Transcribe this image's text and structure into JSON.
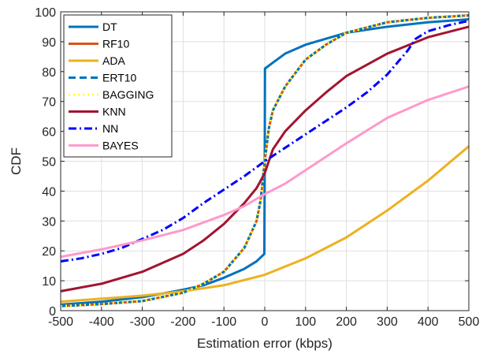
{
  "chart_data": {
    "type": "line",
    "title": "",
    "xlabel": "Estimation error (kbps)",
    "ylabel": "CDF",
    "xlim": [
      -500,
      500
    ],
    "ylim": [
      0,
      100
    ],
    "xticks": [
      "-500",
      "-400",
      "-300",
      "-200",
      "-100",
      "0",
      "100",
      "200",
      "300",
      "400",
      "500"
    ],
    "yticks": [
      "0",
      "10",
      "20",
      "30",
      "40",
      "50",
      "60",
      "70",
      "80",
      "90",
      "100"
    ],
    "grid": true,
    "legend_position": "top-left",
    "series": [
      {
        "name": "DT",
        "color": "#0072BD",
        "dash": "solid",
        "x": [
          -500,
          -400,
          -300,
          -200,
          -150,
          -100,
          -50,
          -20,
          -1,
          0,
          0.5,
          20,
          50,
          100,
          200,
          300,
          400,
          500
        ],
        "y": [
          2,
          3,
          4.5,
          7,
          8.5,
          11,
          14,
          16.5,
          19,
          50,
          81,
          83,
          86,
          89,
          93,
          95,
          96.5,
          97.5
        ]
      },
      {
        "name": "RF10",
        "color": "#D95319",
        "dash": "solid",
        "x": [
          -500,
          -400,
          -300,
          -200,
          -150,
          -100,
          -50,
          -20,
          -10,
          0,
          10,
          20,
          50,
          100,
          150,
          200,
          300,
          400,
          500
        ],
        "y": [
          1.5,
          2.2,
          3.2,
          6,
          9,
          13,
          21,
          30,
          37,
          50,
          61,
          67,
          75,
          84,
          89,
          93,
          96.5,
          98,
          98.8
        ]
      },
      {
        "name": "ADA",
        "color": "#EDB120",
        "dash": "solid",
        "x": [
          -500,
          -400,
          -300,
          -200,
          -100,
          0,
          100,
          200,
          300,
          400,
          500
        ],
        "y": [
          3,
          4,
          5,
          6.5,
          8.5,
          12,
          17.5,
          24.5,
          33.5,
          43.5,
          55
        ]
      },
      {
        "name": "ERT10",
        "color": "#0072BD",
        "dash": "dashed",
        "x": [
          -500,
          -400,
          -300,
          -200,
          -150,
          -100,
          -50,
          -20,
          -10,
          0,
          10,
          20,
          50,
          100,
          150,
          200,
          300,
          400,
          500
        ],
        "y": [
          1.5,
          2.2,
          3.2,
          6,
          9,
          13,
          21,
          30,
          37,
          50,
          61,
          67,
          75,
          84,
          89,
          93,
          96.5,
          98,
          98.8
        ]
      },
      {
        "name": "BAGGING",
        "color": "#FFFF33",
        "dash": "dotted",
        "x": [
          -500,
          -400,
          -300,
          -200,
          -150,
          -100,
          -50,
          -20,
          -10,
          0,
          10,
          20,
          50,
          100,
          150,
          200,
          300,
          400,
          500
        ],
        "y": [
          1.5,
          2.2,
          3.2,
          6,
          9,
          13,
          21,
          30,
          37,
          50,
          61,
          67,
          75,
          84,
          89,
          93,
          96.5,
          98,
          98.8
        ]
      },
      {
        "name": "KNN",
        "color": "#A2142F",
        "dash": "solid",
        "x": [
          -500,
          -400,
          -300,
          -200,
          -150,
          -100,
          -50,
          -20,
          0,
          20,
          50,
          100,
          150,
          200,
          300,
          400,
          500
        ],
        "y": [
          6.5,
          9,
          13,
          19,
          23.5,
          29,
          36,
          41,
          46,
          54,
          60,
          67,
          73,
          78.5,
          86,
          91.5,
          95
        ]
      },
      {
        "name": "NN",
        "color": "#0000FF",
        "dash": "dashdot",
        "x": [
          -500,
          -450,
          -400,
          -350,
          -300,
          -250,
          -200,
          -150,
          -100,
          -50,
          0,
          50,
          100,
          150,
          200,
          250,
          300,
          350,
          370,
          400,
          450,
          500
        ],
        "y": [
          16.5,
          17.5,
          19,
          21,
          24,
          27,
          31,
          36,
          40.5,
          45,
          50,
          54.5,
          59,
          63.5,
          68,
          73,
          79,
          87,
          91,
          93.5,
          95.5,
          97
        ]
      },
      {
        "name": "BAYES",
        "color": "#FF99CC",
        "dash": "solid",
        "x": [
          -500,
          -400,
          -300,
          -200,
          -150,
          -100,
          -50,
          0,
          50,
          100,
          200,
          300,
          400,
          500
        ],
        "y": [
          18,
          20.5,
          23.5,
          27,
          29.5,
          32,
          35,
          39,
          42.5,
          47,
          56,
          64.5,
          70.5,
          75
        ]
      }
    ]
  }
}
